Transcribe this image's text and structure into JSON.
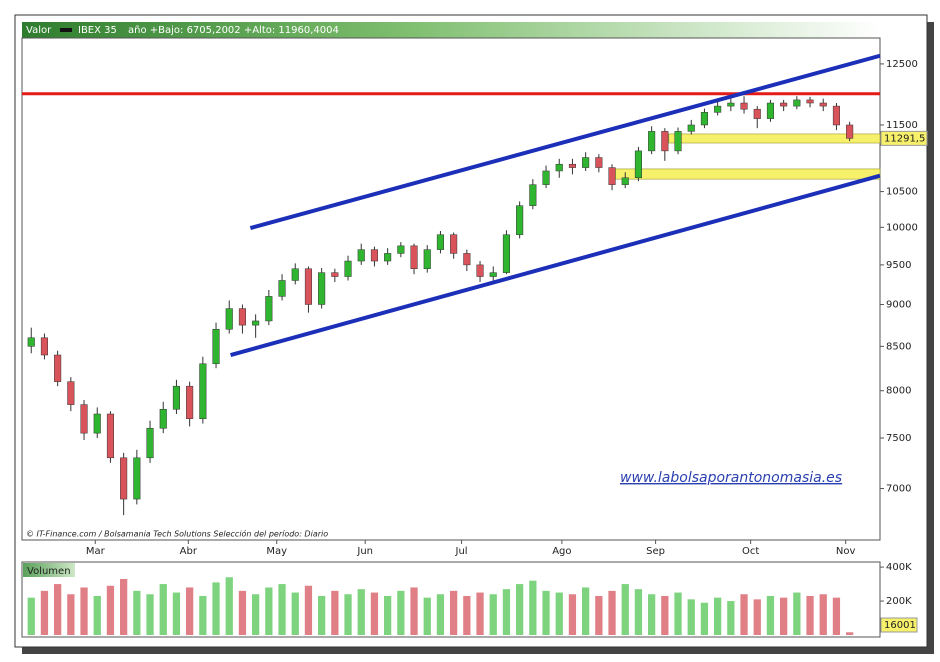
{
  "chart_data": {
    "type": "candlestick",
    "header": {
      "legend_label": "Valor",
      "symbol": "IBEX 35",
      "range_text": "año +Bajo: 6705,2002 +Alto: 11960,4004"
    },
    "footer": "© IT-Finance.com / Bolsamania Tech Solutions   Selección del período: Diario",
    "watermark": "www.labolsaporantonomasia.es",
    "log_scale": true,
    "ylim": [
      6525,
      12950
    ],
    "yticks": [
      7000,
      7500,
      8000,
      8500,
      9000,
      9500,
      10000,
      10500,
      11500,
      12500
    ],
    "xlim": [
      -0.7,
      64.3
    ],
    "xticks": [
      {
        "value": 4.85,
        "label": "Mar"
      },
      {
        "value": 11.9,
        "label": "Abr"
      },
      {
        "value": 18.6,
        "label": "May"
      },
      {
        "value": 25.3,
        "label": "Jun"
      },
      {
        "value": 32.6,
        "label": "Jul"
      },
      {
        "value": 40.2,
        "label": "Ago"
      },
      {
        "value": 47.3,
        "label": "Sep"
      },
      {
        "value": 54.5,
        "label": "Oct"
      },
      {
        "value": 61.7,
        "label": "Nov"
      }
    ],
    "up_color": "#2fb52f",
    "down_color": "#d9535a",
    "candles": {
      "open": [
        8500,
        8600,
        8400,
        8100,
        7850,
        7550,
        7750,
        7300,
        6900,
        7300,
        7600,
        7800,
        8050,
        7700,
        8300,
        8700,
        8950,
        8750,
        8800,
        9100,
        9300,
        9450,
        9000,
        9400,
        9350,
        9550,
        9700,
        9550,
        9650,
        9750,
        9450,
        9700,
        9900,
        9650,
        9500,
        9350,
        9400,
        9900,
        10300,
        10600,
        10800,
        10900,
        10850,
        11000,
        10850,
        10600,
        10700,
        11100,
        11400,
        11100,
        11400,
        11500,
        11700,
        11800,
        11850,
        11750,
        11600,
        11850,
        11800,
        11900,
        11850,
        11800,
        11500
      ],
      "high": [
        8720,
        8650,
        8450,
        8150,
        7900,
        7820,
        7780,
        7350,
        7380,
        7680,
        7880,
        8120,
        8100,
        8380,
        8780,
        9050,
        9000,
        8880,
        9180,
        9380,
        9520,
        9480,
        9460,
        9450,
        9620,
        9780,
        9740,
        9720,
        9800,
        9780,
        9760,
        9950,
        9930,
        9700,
        9550,
        9480,
        9960,
        10360,
        10680,
        10880,
        10980,
        10980,
        11080,
        11050,
        10900,
        10780,
        11160,
        11480,
        11450,
        11460,
        11580,
        11760,
        11880,
        11920,
        11960,
        11800,
        11900,
        11900,
        11960,
        11950,
        11920,
        11850,
        11550
      ],
      "low": [
        8420,
        8350,
        8050,
        7780,
        7480,
        7500,
        7250,
        6750,
        6850,
        7250,
        7550,
        7750,
        7620,
        7650,
        8250,
        8650,
        8650,
        8600,
        8750,
        9050,
        9250,
        8900,
        8950,
        9280,
        9300,
        9500,
        9480,
        9500,
        9600,
        9380,
        9400,
        9650,
        9580,
        9420,
        9280,
        9300,
        9380,
        9850,
        10250,
        10550,
        10700,
        10750,
        10800,
        10780,
        10520,
        10550,
        10650,
        11050,
        10950,
        11050,
        11350,
        11450,
        11650,
        11720,
        11680,
        11450,
        11550,
        11720,
        11750,
        11780,
        11720,
        11420,
        11250
      ],
      "close": [
        8600,
        8400,
        8100,
        7850,
        7550,
        7750,
        7300,
        6900,
        7300,
        7600,
        7800,
        8050,
        7700,
        8300,
        8700,
        8950,
        8750,
        8800,
        9100,
        9300,
        9450,
        9000,
        9400,
        9350,
        9550,
        9700,
        9550,
        9650,
        9750,
        9450,
        9700,
        9900,
        9650,
        9500,
        9350,
        9400,
        9900,
        10300,
        10600,
        10800,
        10900,
        10850,
        11000,
        10850,
        10600,
        10700,
        11100,
        11400,
        11100,
        11400,
        11500,
        11700,
        11800,
        11850,
        11750,
        11600,
        11850,
        11800,
        11900,
        11850,
        11800,
        11500,
        11292
      ]
    },
    "horizontal_lines": [
      {
        "value": 12000,
        "color": "#e41b17"
      }
    ],
    "trend_lines": [
      {
        "color": "#1c2fb8",
        "from": [
          16.6,
          9990
        ],
        "to": [
          64.3,
          12640
        ]
      },
      {
        "color": "#1c2fb8",
        "from": [
          15.1,
          8400
        ],
        "to": [
          64.3,
          10730
        ]
      }
    ],
    "bands": [
      {
        "color": "#f7f06a",
        "from_x": 48.3,
        "low": 11220,
        "high": 11360
      },
      {
        "color": "#f7f06a",
        "from_x": 44.25,
        "low": 10680,
        "high": 10830
      }
    ],
    "last_price": {
      "value": 11291.5,
      "label": "11291,5"
    },
    "volume": {
      "title": "Volumen",
      "ylim": [
        0,
        430000
      ],
      "yticks": [
        {
          "value": 200000,
          "label": "200K"
        },
        {
          "value": 400000,
          "label": "400K"
        }
      ],
      "values": [
        220000,
        260000,
        300000,
        240000,
        280000,
        230000,
        290000,
        330000,
        260000,
        240000,
        300000,
        250000,
        280000,
        230000,
        310000,
        340000,
        260000,
        240000,
        280000,
        300000,
        250000,
        290000,
        230000,
        260000,
        240000,
        270000,
        250000,
        230000,
        260000,
        280000,
        220000,
        240000,
        260000,
        230000,
        250000,
        240000,
        270000,
        300000,
        320000,
        260000,
        250000,
        240000,
        280000,
        230000,
        260000,
        300000,
        270000,
        240000,
        230000,
        250000,
        210000,
        190000,
        220000,
        200000,
        240000,
        210000,
        230000,
        220000,
        250000,
        230000,
        240000,
        220000,
        16001
      ],
      "last_label": 16001
    }
  }
}
